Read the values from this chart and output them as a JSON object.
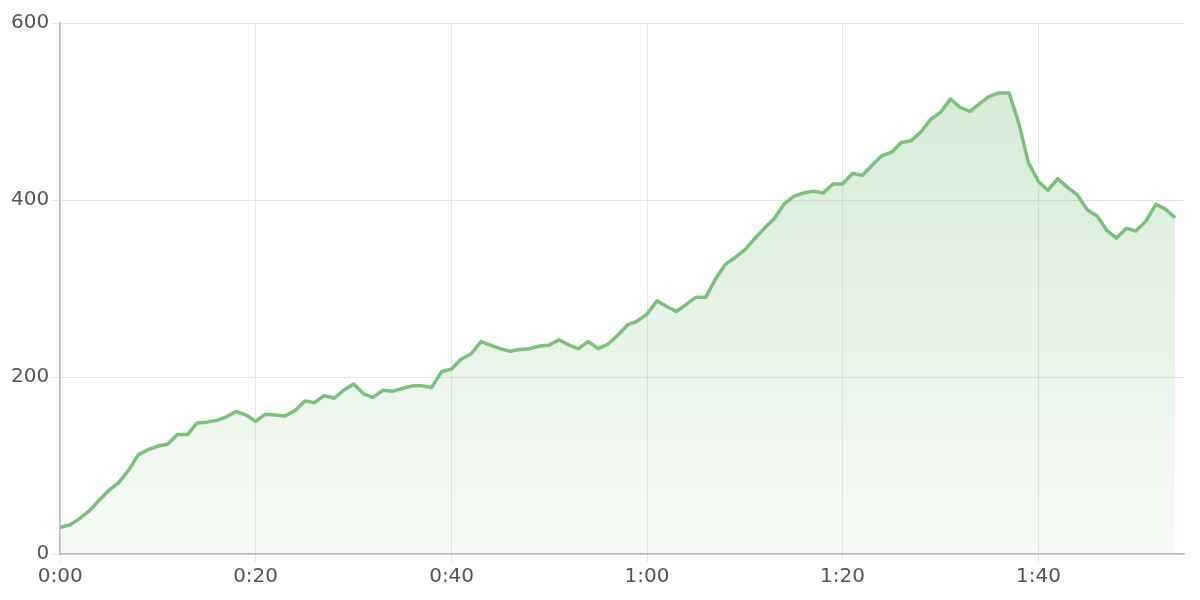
{
  "chart_data": {
    "type": "area",
    "color": "#7dbf7d",
    "grid": true,
    "xlim": [
      0,
      1.915
    ],
    "xticks": [
      {
        "value": 0,
        "label": "0:00"
      },
      {
        "value": 0.333,
        "label": "0:20"
      },
      {
        "value": 0.667,
        "label": "0:40"
      },
      {
        "value": 1,
        "label": "1:00"
      },
      {
        "value": 1.333,
        "label": "1:20"
      },
      {
        "value": 1.667,
        "label": "1:40"
      }
    ],
    "ylim": [
      0,
      600
    ],
    "yticks": [
      0,
      200,
      400,
      600
    ],
    "x": [
      0,
      0.017,
      0.033,
      0.05,
      0.067,
      0.083,
      0.1,
      0.117,
      0.133,
      0.15,
      0.167,
      0.183,
      0.2,
      0.217,
      0.233,
      0.25,
      0.267,
      0.283,
      0.3,
      0.317,
      0.333,
      0.35,
      0.367,
      0.383,
      0.4,
      0.417,
      0.433,
      0.45,
      0.467,
      0.483,
      0.5,
      0.517,
      0.533,
      0.55,
      0.567,
      0.583,
      0.6,
      0.617,
      0.633,
      0.65,
      0.667,
      0.683,
      0.7,
      0.717,
      0.733,
      0.75,
      0.767,
      0.783,
      0.8,
      0.817,
      0.833,
      0.85,
      0.867,
      0.883,
      0.9,
      0.917,
      0.933,
      0.95,
      0.967,
      0.983,
      1,
      1.017,
      1.033,
      1.05,
      1.067,
      1.083,
      1.1,
      1.117,
      1.133,
      1.15,
      1.167,
      1.183,
      1.2,
      1.217,
      1.233,
      1.25,
      1.267,
      1.283,
      1.3,
      1.317,
      1.333,
      1.35,
      1.367,
      1.383,
      1.4,
      1.417,
      1.433,
      1.45,
      1.467,
      1.483,
      1.5,
      1.517,
      1.533,
      1.55,
      1.567,
      1.583,
      1.6,
      1.617,
      1.633,
      1.65,
      1.667,
      1.683,
      1.7,
      1.717,
      1.733,
      1.75,
      1.767,
      1.783,
      1.8,
      1.817,
      1.833,
      1.85,
      1.867,
      1.883,
      1.9
    ],
    "values": [
      30,
      33,
      40,
      49,
      61,
      72,
      81,
      95,
      112,
      118,
      122,
      124,
      135,
      135,
      148,
      149,
      151,
      155,
      161,
      157,
      150,
      158,
      157,
      156,
      162,
      173,
      171,
      179,
      176,
      185,
      192,
      181,
      177,
      185,
      184,
      187,
      190,
      190,
      188,
      206,
      209,
      220,
      226,
      240,
      236,
      232,
      229,
      231,
      232,
      235,
      236,
      242,
      236,
      232,
      240,
      232,
      237,
      247,
      259,
      263,
      271,
      286,
      280,
      274,
      282,
      290,
      290,
      311,
      327,
      335,
      344,
      356,
      368,
      379,
      395,
      404,
      408,
      410,
      408,
      418,
      418,
      430,
      428,
      439,
      450,
      454,
      465,
      467,
      477,
      491,
      499,
      514,
      505,
      500,
      509,
      517,
      521,
      521,
      488,
      442,
      421,
      411,
      424,
      414,
      406,
      389,
      382,
      366,
      357,
      368,
      365,
      376,
      395,
      390,
      380
    ]
  }
}
